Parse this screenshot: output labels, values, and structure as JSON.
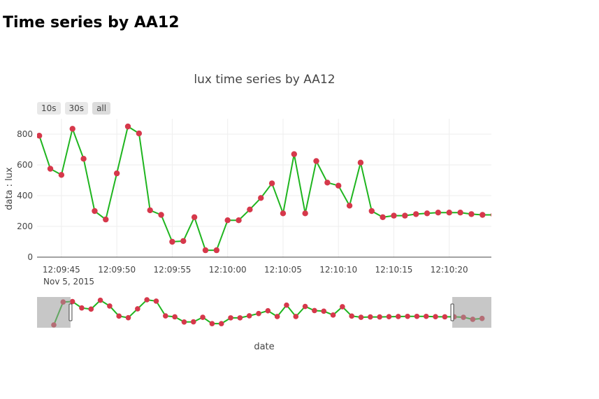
{
  "page_title": "Time series by AA12",
  "range_buttons": [
    "10s",
    "30s",
    "all"
  ],
  "colors": {
    "line": "#1fb51f",
    "marker": "#d6384b",
    "grid": "#eeeeee",
    "slider_mask": "#999999"
  },
  "chart_data": {
    "type": "line",
    "title": "lux time series by AA12",
    "xlabel": "date",
    "ylabel": "data : lux",
    "date_label": "Nov 5, 2015",
    "x_start": "12:09:41",
    "x_step_seconds": 1,
    "ylim": [
      0,
      900
    ],
    "x_view": [
      "12:09:42.8",
      "12:10:23.8"
    ],
    "x_full": [
      "12:09:39.2",
      "12:10:28.0"
    ],
    "x_ticks": [
      "12:09:45",
      "12:09:50",
      "12:09:55",
      "12:10:00",
      "12:10:05",
      "12:10:10",
      "12:10:15",
      "12:10:20"
    ],
    "y_ticks": [
      0,
      200,
      400,
      600,
      800
    ],
    "grid": true,
    "series": [
      {
        "x": [
          "12:09:41",
          "12:09:42",
          "12:09:43",
          "12:09:44",
          "12:09:45",
          "12:09:46",
          "12:09:47",
          "12:09:48",
          "12:09:49",
          "12:09:50",
          "12:09:51",
          "12:09:52",
          "12:09:53",
          "12:09:54",
          "12:09:55",
          "12:09:56",
          "12:09:57",
          "12:09:58",
          "12:09:59",
          "12:10:00",
          "12:10:01",
          "12:10:02",
          "12:10:03",
          "12:10:04",
          "12:10:05",
          "12:10:06",
          "12:10:07",
          "12:10:08",
          "12:10:09",
          "12:10:10",
          "12:10:11",
          "12:10:12",
          "12:10:13",
          "12:10:14",
          "12:10:15",
          "12:10:16",
          "12:10:17",
          "12:10:18",
          "12:10:19",
          "12:10:20",
          "12:10:21",
          "12:10:22",
          "12:10:23",
          "12:10:24",
          "12:10:25",
          "12:10:26",
          "12:10:27"
        ],
        "values": [
          1,
          775,
          790,
          575,
          535,
          835,
          640,
          300,
          245,
          545,
          850,
          805,
          305,
          275,
          100,
          105,
          260,
          45,
          45,
          240,
          240,
          310,
          385,
          480,
          285,
          670,
          285,
          625,
          485,
          465,
          335,
          615,
          300,
          260,
          270,
          270,
          280,
          285,
          290,
          290,
          290,
          280,
          275,
          275,
          260,
          190,
          220
        ]
      }
    ]
  }
}
